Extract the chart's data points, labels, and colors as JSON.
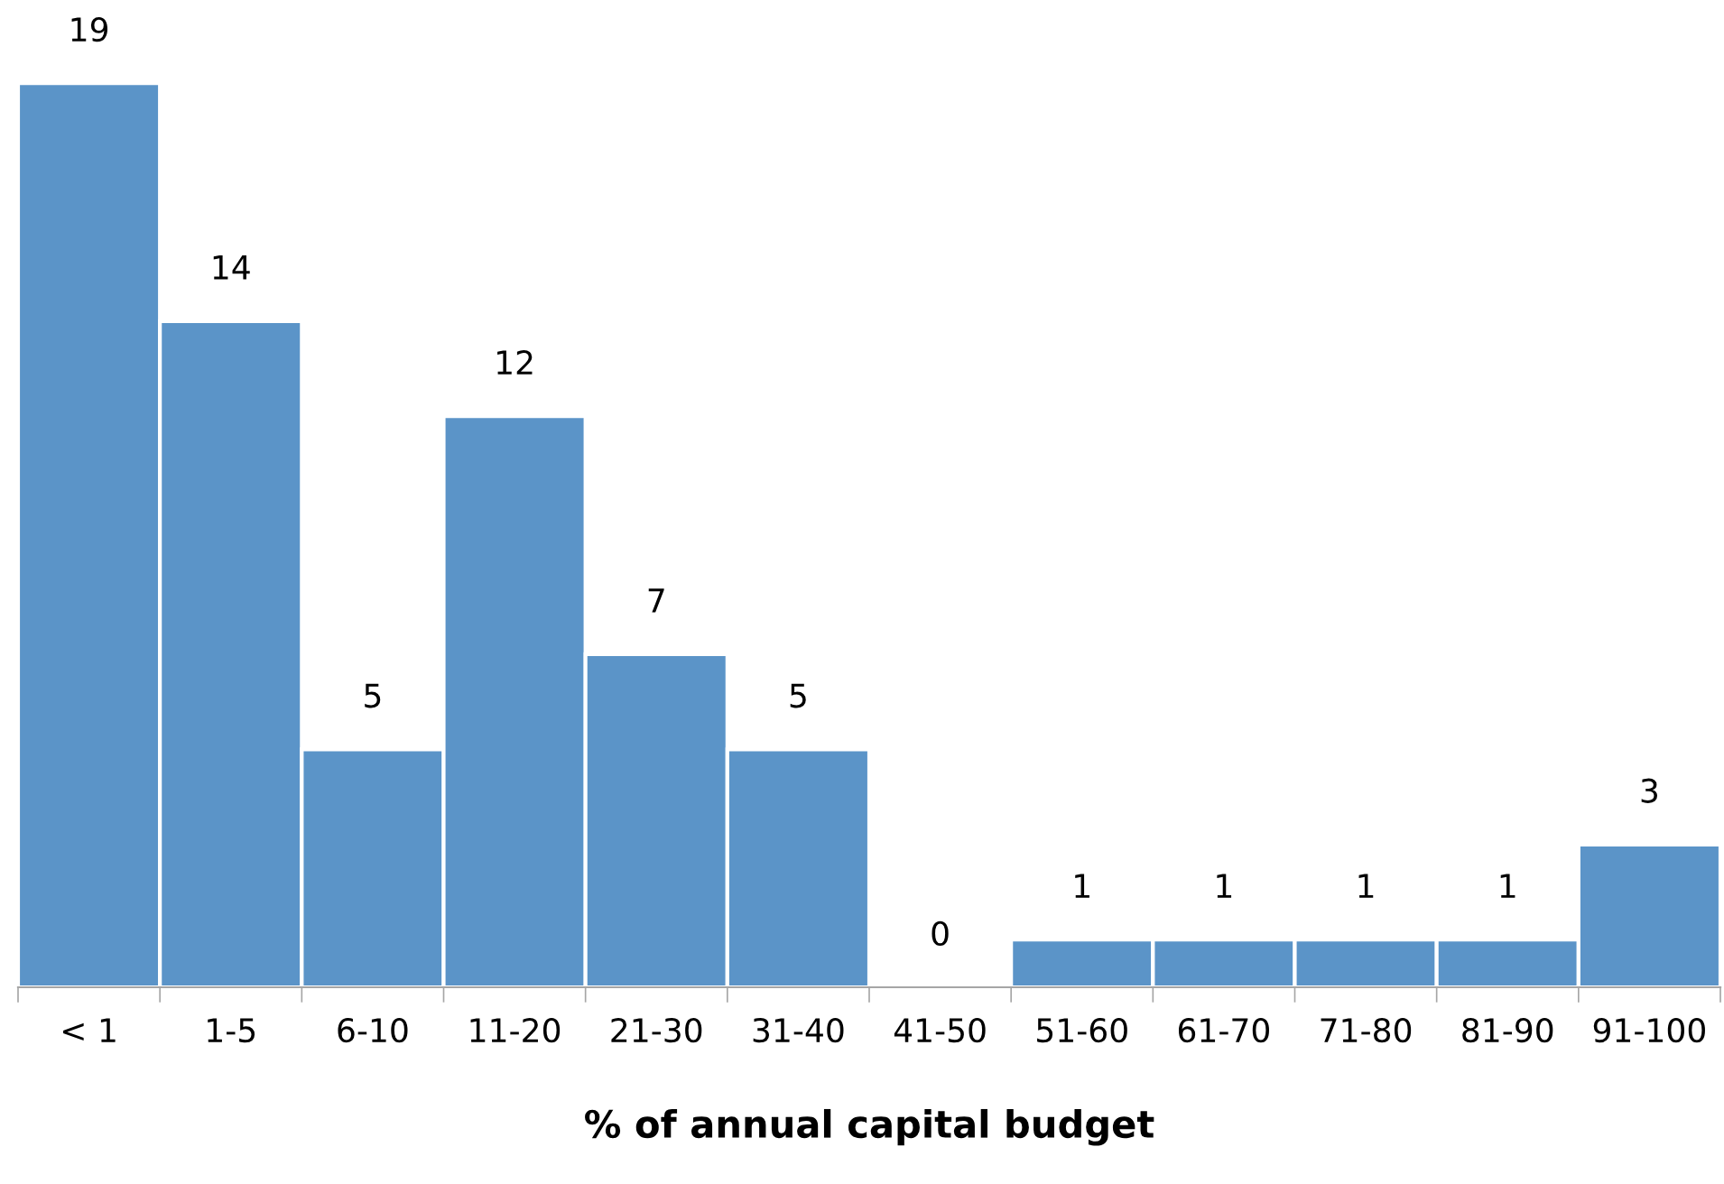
{
  "chart_data": {
    "type": "bar",
    "xlabel": "% of annual capital budget",
    "categories": [
      "< 1",
      "1-5",
      "6-10",
      "11-20",
      "21-30",
      "31-40",
      "41-50",
      "51-60",
      "61-70",
      "71-80",
      "81-90",
      "91-100"
    ],
    "values": [
      19,
      14,
      5,
      12,
      7,
      5,
      0,
      1,
      1,
      1,
      1,
      3
    ],
    "color": "#5b94c8",
    "data_labels": true,
    "grid": false,
    "legend": false
  }
}
